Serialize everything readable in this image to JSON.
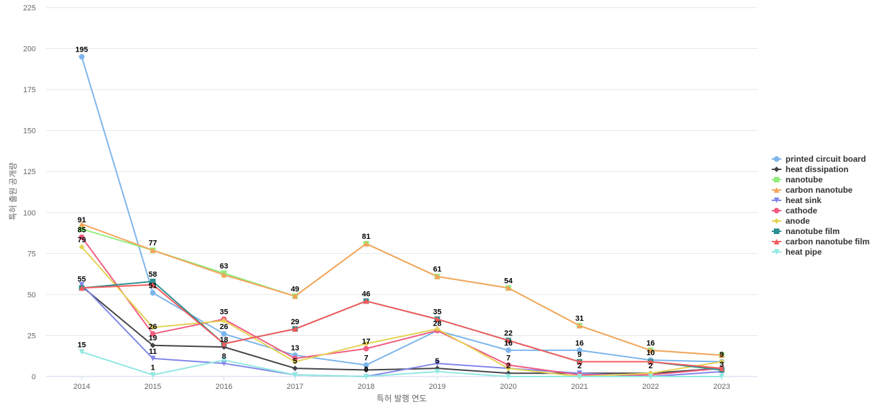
{
  "chart_data": {
    "type": "line",
    "title": "",
    "xlabel": "특허 발행 연도",
    "ylabel": "특허 출원 공개량",
    "ylim": [
      0,
      225
    ],
    "yticks": [
      0,
      25,
      50,
      75,
      100,
      125,
      150,
      175,
      200,
      225
    ],
    "grid": true,
    "legend_position": "right",
    "categories": [
      "2014",
      "2015",
      "2016",
      "2017",
      "2018",
      "2019",
      "2020",
      "2021",
      "2022",
      "2023"
    ],
    "series": [
      {
        "name": "printed circuit board",
        "color": "#7cb5ec",
        "marker": "circle",
        "values": [
          195,
          51,
          26,
          13,
          7,
          28,
          16,
          16,
          10,
          9
        ]
      },
      {
        "name": "heat dissipation",
        "color": "#434348",
        "marker": "diamond",
        "values": [
          55,
          19,
          18,
          5,
          4,
          5,
          2,
          2,
          2,
          5
        ]
      },
      {
        "name": "nanotube",
        "color": "#90ed7d",
        "marker": "square",
        "values": [
          90,
          77,
          63,
          49,
          81,
          61,
          54,
          31,
          16,
          13
        ]
      },
      {
        "name": "carbon nanotube",
        "color": "#f7a35c",
        "marker": "triangle",
        "values": [
          93,
          77,
          62,
          49,
          81,
          61,
          54,
          31,
          16,
          13
        ]
      },
      {
        "name": "heat sink",
        "color": "#8085e9",
        "marker": "triangle-down",
        "values": [
          56,
          11,
          8,
          1,
          0,
          8,
          5,
          2,
          0,
          3
        ]
      },
      {
        "name": "cathode",
        "color": "#f15c80",
        "marker": "circle",
        "values": [
          85,
          26,
          35,
          11,
          17,
          28,
          7,
          1,
          1,
          5
        ]
      },
      {
        "name": "anode",
        "color": "#e4d354",
        "marker": "diamond",
        "values": [
          79,
          30,
          34,
          9,
          20,
          29,
          5,
          0,
          2,
          9
        ]
      },
      {
        "name": "nanotube film",
        "color": "#2b908f",
        "marker": "square",
        "values": [
          54,
          58,
          20,
          29,
          46,
          35,
          22,
          9,
          9,
          4
        ]
      },
      {
        "name": "carbon nanotube film",
        "color": "#f45b5b",
        "marker": "triangle",
        "values": [
          54,
          56,
          20,
          29,
          46,
          35,
          22,
          9,
          9,
          5
        ]
      },
      {
        "name": "heat pipe",
        "color": "#91e8e1",
        "marker": "triangle-down",
        "values": [
          15,
          1,
          10,
          1,
          0,
          3,
          0,
          0,
          0,
          0
        ]
      }
    ],
    "data_labels": [
      {
        "x": "2014",
        "y": 195,
        "text": "195"
      },
      {
        "x": "2014",
        "y": 91,
        "text": "91"
      },
      {
        "x": "2014",
        "y": 85,
        "text": "85"
      },
      {
        "x": "2014",
        "y": 79,
        "text": "79"
      },
      {
        "x": "2014",
        "y": 55,
        "text": "55"
      },
      {
        "x": "2014",
        "y": 15,
        "text": "15"
      },
      {
        "x": "2015",
        "y": 77,
        "text": "77"
      },
      {
        "x": "2015",
        "y": 58,
        "text": "58"
      },
      {
        "x": "2015",
        "y": 51,
        "text": "51"
      },
      {
        "x": "2015",
        "y": 26,
        "text": "26"
      },
      {
        "x": "2015",
        "y": 19,
        "text": "19"
      },
      {
        "x": "2015",
        "y": 11,
        "text": "11"
      },
      {
        "x": "2015",
        "y": 1,
        "text": "1"
      },
      {
        "x": "2016",
        "y": 63,
        "text": "63"
      },
      {
        "x": "2016",
        "y": 35,
        "text": "35"
      },
      {
        "x": "2016",
        "y": 26,
        "text": "26"
      },
      {
        "x": "2016",
        "y": 18,
        "text": "18"
      },
      {
        "x": "2016",
        "y": 8,
        "text": "8"
      },
      {
        "x": "2017",
        "y": 49,
        "text": "49"
      },
      {
        "x": "2017",
        "y": 29,
        "text": "29"
      },
      {
        "x": "2017",
        "y": 13,
        "text": "13"
      },
      {
        "x": "2017",
        "y": 5,
        "text": "5"
      },
      {
        "x": "2018",
        "y": 81,
        "text": "81"
      },
      {
        "x": "2018",
        "y": 46,
        "text": "46"
      },
      {
        "x": "2018",
        "y": 17,
        "text": "17"
      },
      {
        "x": "2018",
        "y": 7,
        "text": "7"
      },
      {
        "x": "2018",
        "y": 0,
        "text": "0"
      },
      {
        "x": "2019",
        "y": 61,
        "text": "61"
      },
      {
        "x": "2019",
        "y": 35,
        "text": "35"
      },
      {
        "x": "2019",
        "y": 28,
        "text": "28"
      },
      {
        "x": "2019",
        "y": 5,
        "text": "5"
      },
      {
        "x": "2020",
        "y": 54,
        "text": "54"
      },
      {
        "x": "2020",
        "y": 22,
        "text": "22"
      },
      {
        "x": "2020",
        "y": 16,
        "text": "16"
      },
      {
        "x": "2020",
        "y": 7,
        "text": "7"
      },
      {
        "x": "2020",
        "y": 2,
        "text": "2"
      },
      {
        "x": "2021",
        "y": 31,
        "text": "31"
      },
      {
        "x": "2021",
        "y": 16,
        "text": "16"
      },
      {
        "x": "2021",
        "y": 9,
        "text": "9"
      },
      {
        "x": "2021",
        "y": 2,
        "text": "2"
      },
      {
        "x": "2022",
        "y": 16,
        "text": "16"
      },
      {
        "x": "2022",
        "y": 10,
        "text": "10"
      },
      {
        "x": "2022",
        "y": 2,
        "text": "2"
      },
      {
        "x": "2023",
        "y": 9,
        "text": "9"
      },
      {
        "x": "2023",
        "y": 3,
        "text": "3"
      }
    ]
  }
}
